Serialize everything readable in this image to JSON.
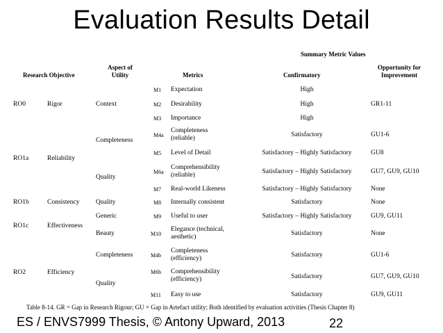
{
  "title": "Evaluation Results Detail",
  "headers": {
    "summary": "Summary Metric Values",
    "research_objective": "Research Objective",
    "aspect_line1": "Aspect of",
    "aspect_line2": "Utility",
    "metrics": "Metrics",
    "confirmatory": "Confirmatory",
    "opportunity_line1": "Opportunity for",
    "opportunity_line2": "Improvement"
  },
  "left_groups": {
    "ro0": {
      "code": "RO0",
      "name": "Rigor",
      "aspect": "Context"
    },
    "ro1a": {
      "code": "RO1a",
      "name": "Reliability",
      "aspect_completeness": "Completeness",
      "aspect_quality": "Quality"
    },
    "ro1b": {
      "code": "RO1b",
      "name": "Consistency",
      "aspect": "Quality"
    },
    "ro1c": {
      "code": "RO1c",
      "name": "Effectiveness",
      "aspect_generic": "Generic",
      "aspect_beauty": "Beauty"
    },
    "ro2": {
      "code": "RO2",
      "name": "Efficiency",
      "aspect_completeness": "Completeness",
      "aspect_quality": "Quality"
    }
  },
  "rows": [
    {
      "code": "M1",
      "metric_line1": "Expectation",
      "metric_line2": "",
      "confirmatory": "High",
      "opportunity": ""
    },
    {
      "code": "M2",
      "metric_line1": "Desirability",
      "metric_line2": "",
      "confirmatory": "High",
      "opportunity": "GR1-11"
    },
    {
      "code": "M3",
      "metric_line1": "Importance",
      "metric_line2": "",
      "confirmatory": "High",
      "opportunity": ""
    },
    {
      "code": "M4a",
      "metric_line1": "Completeness",
      "metric_line2": "(reliable)",
      "confirmatory": "Satisfactory",
      "opportunity": "GU1-6"
    },
    {
      "code": "M5",
      "metric_line1": "Level of Detail",
      "metric_line2": "",
      "confirmatory": "Satisfactory – Highly Satisfactory",
      "opportunity": "GU8"
    },
    {
      "code": "M6a",
      "metric_line1": "Comprehensibility",
      "metric_line2": "(reliable)",
      "confirmatory": "Satisfactory – Highly Satisfactory",
      "opportunity": "GU7, GU9, GU10"
    },
    {
      "code": "M7",
      "metric_line1": "Real-world Likeness",
      "metric_line2": "",
      "confirmatory": "Satisfactory – Highly Satisfactory",
      "opportunity": "None"
    },
    {
      "code": "M8",
      "metric_line1": "Internally consistent",
      "metric_line2": "",
      "confirmatory": "Satisfactory",
      "opportunity": "None"
    },
    {
      "code": "M9",
      "metric_line1": "Useful to user",
      "metric_line2": "",
      "confirmatory": "Satisfactory – Highly Satisfactory",
      "opportunity": "GU9, GU11"
    },
    {
      "code": "M10",
      "metric_line1": "Elegance (technical,",
      "metric_line2": "aesthetic)",
      "confirmatory": "Satisfactory",
      "opportunity": "None"
    },
    {
      "code": "M4b",
      "metric_line1": "Completeness",
      "metric_line2": "(efficiency)",
      "confirmatory": "Satisfactory",
      "opportunity": "GU1-6"
    },
    {
      "code": "M6b",
      "metric_line1": "Comprehensibility",
      "metric_line2": "(efficiency)",
      "confirmatory": "Satisfactory",
      "opportunity": "GU7, GU9, GU10"
    },
    {
      "code": "M11",
      "metric_line1": "Easy to use",
      "metric_line2": "",
      "confirmatory": "Satisfactory",
      "opportunity": "GU9, GU11"
    }
  ],
  "caption": "Table 8-14. GR = Gap in Research Rigour; GU = Gap in Artefact utility; Both identified by evaluation activities (Thesis Chapter 8)",
  "footer_left": "ES / ENVS7999 Thesis, © Antony Upward, 2013",
  "page_number": "22"
}
